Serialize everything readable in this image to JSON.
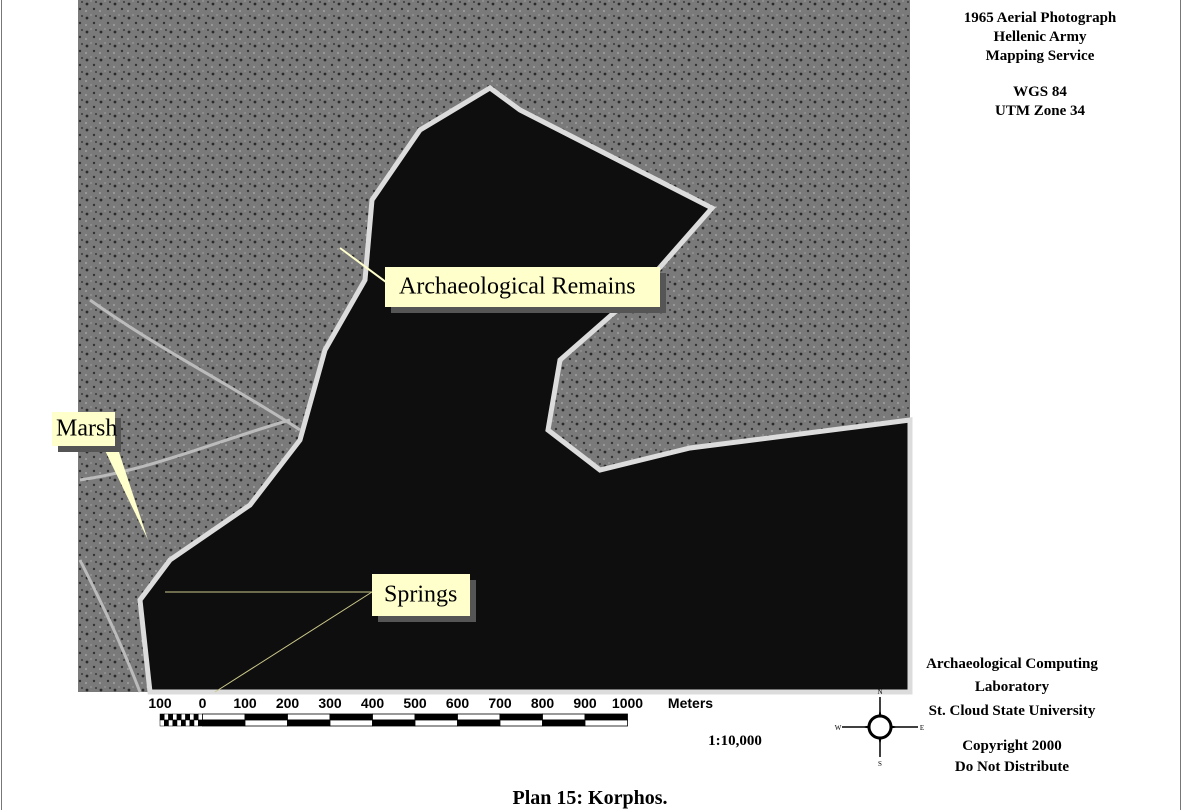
{
  "info": {
    "source": [
      "1965 Aerial Photograph",
      "Hellenic Army",
      "Mapping Service"
    ],
    "datum": [
      "WGS 84",
      "UTM Zone 34"
    ]
  },
  "labels": {
    "archaeological_remains": "Archaeological Remains",
    "marsh": "Marsh",
    "springs": "Springs"
  },
  "scale_bar": {
    "ticks": [
      "100",
      "0",
      "100",
      "200",
      "300",
      "400",
      "500",
      "600",
      "700",
      "800",
      "900",
      "1000"
    ],
    "unit": "Meters",
    "ratio": "1:10,000"
  },
  "compass": {
    "n": "N",
    "e": "E",
    "s": "S",
    "w": "W"
  },
  "credits": [
    "Archaeological Computing",
    "Laboratory",
    "St. Cloud State University"
  ],
  "copyright": [
    "Copyright 2000",
    "Do Not Distribute"
  ],
  "caption": "Plan 15: Korphos."
}
